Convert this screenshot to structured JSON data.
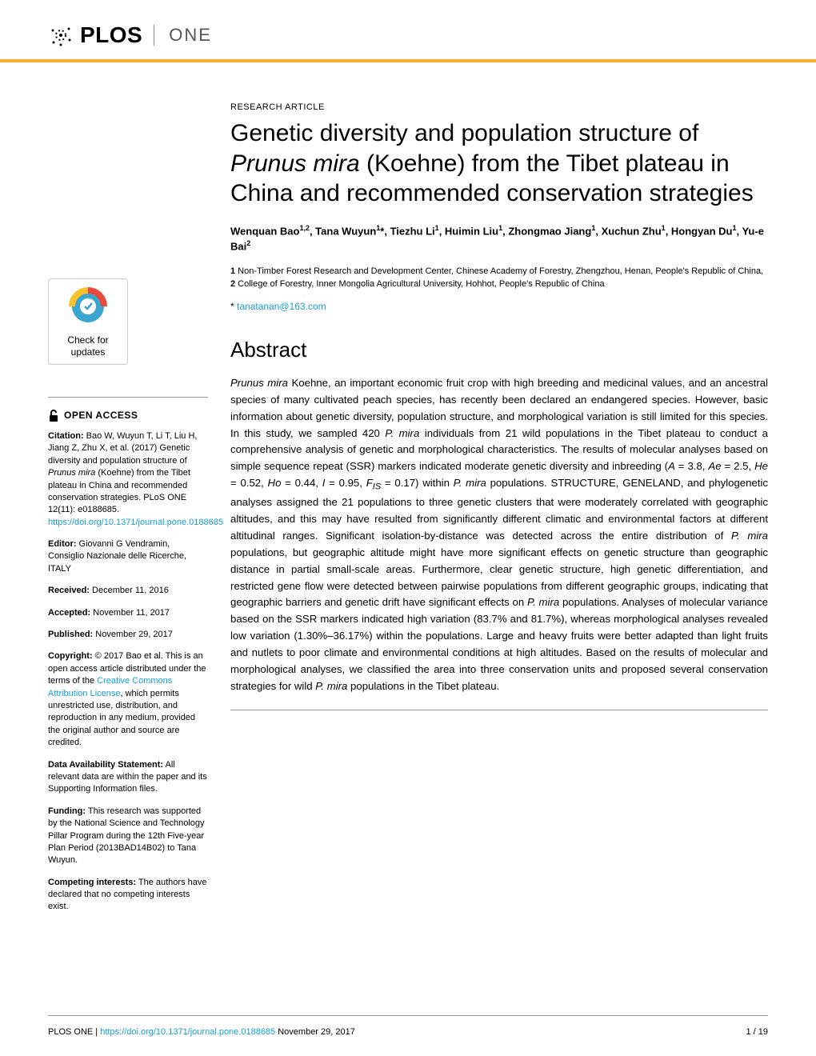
{
  "journal": {
    "plos": "PLOS",
    "one": "ONE"
  },
  "colors": {
    "accent": "#f8af2d",
    "link": "#16a0db",
    "badge_ring": "#e84c3d",
    "badge_circle": "#3aa6d0",
    "rule": "#999999",
    "text": "#000000"
  },
  "badge": {
    "line1": "Check for",
    "line2": "updates"
  },
  "openAccess": "OPEN ACCESS",
  "sidebar": {
    "citationLabel": "Citation:",
    "citationText": " Bao W, Wuyun T, Li T, Liu H, Jiang Z, Zhu X, et al. (2017) Genetic diversity and population structure of ",
    "citationItalic": "Prunus mira",
    "citationText2": " (Koehne) from the Tibet plateau in China and recommended conservation strategies. PLoS ONE 12(11): e0188685. ",
    "citationLink": "https://doi.org/10.1371/journal.pone.0188685",
    "editorLabel": "Editor:",
    "editorText": " Giovanni G Vendramin, Consiglio Nazionale delle Ricerche, ITALY",
    "receivedLabel": "Received:",
    "receivedText": " December 11, 2016",
    "acceptedLabel": "Accepted:",
    "acceptedText": " November 11, 2017",
    "publishedLabel": "Published:",
    "publishedText": " November 29, 2017",
    "copyrightLabel": "Copyright:",
    "copyrightText": " © 2017 Bao et al. This is an open access article distributed under the terms of the ",
    "ccLink": "Creative Commons Attribution License",
    "copyrightText2": ", which permits unrestricted use, distribution, and reproduction in any medium, provided the original author and source are credited.",
    "dataLabel": "Data Availability Statement:",
    "dataText": " All relevant data are within the paper and its Supporting Information files.",
    "fundingLabel": "Funding:",
    "fundingText": " This research was supported by the National Science and Technology Pillar Program during the 12th Five-year Plan Period (2013BAD14B02) to Tana Wuyun.",
    "competingLabel": "Competing interests:",
    "competingText": " The authors have declared that no competing interests exist."
  },
  "article": {
    "type": "RESEARCH ARTICLE",
    "titlePre": "Genetic diversity and population structure of ",
    "titleItalic": "Prunus mira",
    "titlePost": " (Koehne) from the Tibet plateau in China and recommended conservation strategies",
    "authors": "Wenquan Bao<sup>1,2</sup>, Tana Wuyun<sup>1</sup>*, Tiezhu Li<sup>1</sup>, Huimin Liu<sup>1</sup>, Zhongmao Jiang<sup>1</sup>, Xuchun Zhu<sup>1</sup>, Hongyan Du<sup>1</sup>, Yu-e Bai<sup>2</sup>",
    "affiliations": "<b>1</b> Non-Timber Forest Research and Development Center, Chinese Academy of Forestry, Zhengzhou, Henan, People's Republic of China, <b>2</b> College of Forestry, Inner Mongolia Agricultural University, Hohhot, People's Republic of China",
    "correspondingSymbol": "* ",
    "correspondingEmail": "tanatanan@163.com",
    "abstractHeading": "Abstract",
    "abstractBody": "<em>Prunus mira</em> Koehne, an important economic fruit crop with high breeding and medicinal values, and an ancestral species of many cultivated peach species, has recently been declared an endangered species. However, basic information about genetic diversity, population structure, and morphological variation is still limited for this species. In this study, we sampled 420 <em>P. mira</em> individuals from 21 wild populations in the Tibet plateau to conduct a comprehensive analysis of genetic and morphological characteristics. The results of molecular analyses based on simple sequence repeat (SSR) markers indicated moderate genetic diversity and inbreeding (<em>A</em> = 3.8, <em>Ae</em> = 2.5, <em>He</em> = 0.52, <em>Ho</em> = 0.44, <em>I</em> = 0.95, <em>F<sub>IS</sub></em> = 0.17) within <em>P. mira</em> populations. STRUCTURE, GENELAND, and phylogenetic analyses assigned the 21 populations to three genetic clusters that were moderately correlated with geographic altitudes, and this may have resulted from significantly different climatic and environmental factors at different altitudinal ranges. Significant isolation-by-distance was detected across the entire distribution of <em>P. mira</em> populations, but geographic altitude might have more significant effects on genetic structure than geographic distance in partial small-scale areas. Furthermore, clear genetic structure, high genetic differentiation, and restricted gene flow were detected between pairwise populations from different geographic groups, indicating that geographic barriers and genetic drift have significant effects on <em>P. mira</em> populations. Analyses of molecular variance based on the SSR markers indicated high variation (83.7% and 81.7%), whereas morphological analyses revealed low variation (1.30%–36.17%) within the populations. Large and heavy fruits were better adapted than light fruits and nutlets to poor climate and environmental conditions at high altitudes. Based on the results of molecular and morphological analyses, we classified the area into three conservation units and proposed several conservation strategies for wild <em>P. mira</em> populations in the Tibet plateau."
  },
  "footer": {
    "left1": "PLOS ONE | ",
    "doi": "https://doi.org/10.1371/journal.pone.0188685",
    "date": "   November 29, 2017",
    "page": "1 / 19"
  }
}
